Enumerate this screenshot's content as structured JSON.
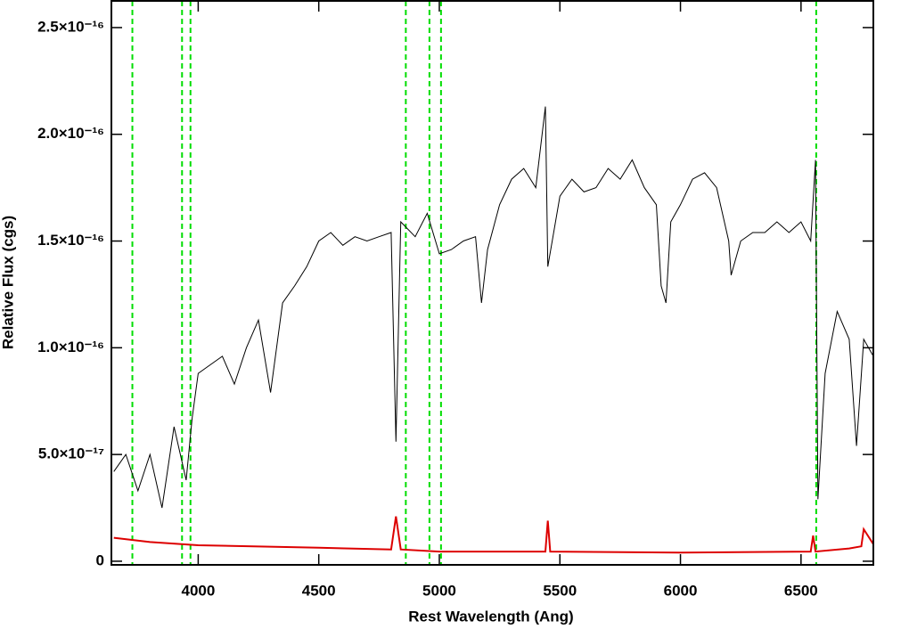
{
  "chart_data": {
    "type": "line",
    "xlabel": "Rest Wavelength (Ang)",
    "ylabel": "Relative Flux (cgs)",
    "xlim": [
      3640,
      6800
    ],
    "ylim": [
      -1.7e-18,
      2.625e-16
    ],
    "xticks": [
      4000,
      4500,
      5000,
      5500,
      6000,
      6500
    ],
    "yticks": [
      0,
      {
        "value": 5e-17,
        "label": "5.0×10⁻¹⁷"
      },
      {
        "value": 1e-16,
        "label": "1.0×10⁻¹⁶"
      },
      {
        "value": 1.5e-16,
        "label": "1.5×10⁻¹⁶"
      },
      {
        "value": 2e-16,
        "label": "2.0×10⁻¹⁶"
      },
      {
        "value": 2.5e-16,
        "label": "2.5×10⁻¹⁶"
      }
    ],
    "vlines": [
      3727,
      3933,
      3968,
      4861,
      4959,
      5007,
      6563
    ],
    "vline_color": "#00dd00",
    "series": [
      {
        "color": "#000000",
        "x": [
          3650,
          3700,
          3750,
          3800,
          3850,
          3900,
          3950,
          3975,
          4000,
          4050,
          4100,
          4150,
          4200,
          4250,
          4300,
          4350,
          4400,
          4450,
          4500,
          4550,
          4600,
          4650,
          4700,
          4750,
          4800,
          4820,
          4840,
          4900,
          4950,
          5000,
          5050,
          5100,
          5150,
          5175,
          5200,
          5250,
          5300,
          5350,
          5400,
          5440,
          5450,
          5500,
          5550,
          5600,
          5650,
          5700,
          5750,
          5800,
          5850,
          5900,
          5920,
          5940,
          5960,
          6000,
          6050,
          6100,
          6150,
          6200,
          6210,
          6250,
          6300,
          6350,
          6400,
          6450,
          6500,
          6540,
          6560,
          6570,
          6600,
          6650,
          6700,
          6730,
          6760,
          6800
        ],
        "values": [
          4.2e-17,
          5e-17,
          3.3e-17,
          5e-17,
          2.5e-17,
          6.3e-17,
          3.8e-17,
          6.7e-17,
          8.8e-17,
          9.2e-17,
          9.6e-17,
          8.3e-17,
          1e-16,
          1.13e-16,
          7.9e-17,
          1.21e-16,
          1.29e-16,
          1.38e-16,
          1.5e-16,
          1.54e-16,
          1.48e-16,
          1.52e-16,
          1.5e-16,
          1.52e-16,
          1.54e-16,
          5.6e-17,
          1.59e-16,
          1.52e-16,
          1.63e-16,
          1.44e-16,
          1.46e-16,
          1.5e-16,
          1.52e-16,
          1.21e-16,
          1.46e-16,
          1.67e-16,
          1.79e-16,
          1.84e-16,
          1.75e-16,
          2.13e-16,
          1.38e-16,
          1.71e-16,
          1.79e-16,
          1.73e-16,
          1.75e-16,
          1.84e-16,
          1.79e-16,
          1.88e-16,
          1.75e-16,
          1.67e-16,
          1.29e-16,
          1.21e-16,
          1.59e-16,
          1.67e-16,
          1.79e-16,
          1.82e-16,
          1.75e-16,
          1.5e-16,
          1.34e-16,
          1.5e-16,
          1.54e-16,
          1.54e-16,
          1.59e-16,
          1.54e-16,
          1.59e-16,
          1.5e-16,
          1.88e-16,
          2.9e-17,
          8.8e-17,
          1.17e-16,
          1.04e-16,
          5.4e-17,
          1.04e-16,
          9.6e-17
        ]
      },
      {
        "color": "#dd0000",
        "x": [
          3650,
          3800,
          4000,
          4500,
          4800,
          4820,
          4840,
          5000,
          5440,
          5450,
          5460,
          6000,
          6540,
          6550,
          6560,
          6700,
          6750,
          6760,
          6800
        ],
        "values": [
          1.1e-17,
          9e-18,
          7.5e-18,
          6.3e-18,
          5.5e-18,
          2.1e-17,
          5.5e-18,
          4.5e-18,
          4.5e-18,
          1.9e-17,
          4.5e-18,
          4e-18,
          4.5e-18,
          1.2e-17,
          4.5e-18,
          6e-18,
          7e-18,
          1.5e-17,
          8e-18
        ]
      }
    ]
  }
}
